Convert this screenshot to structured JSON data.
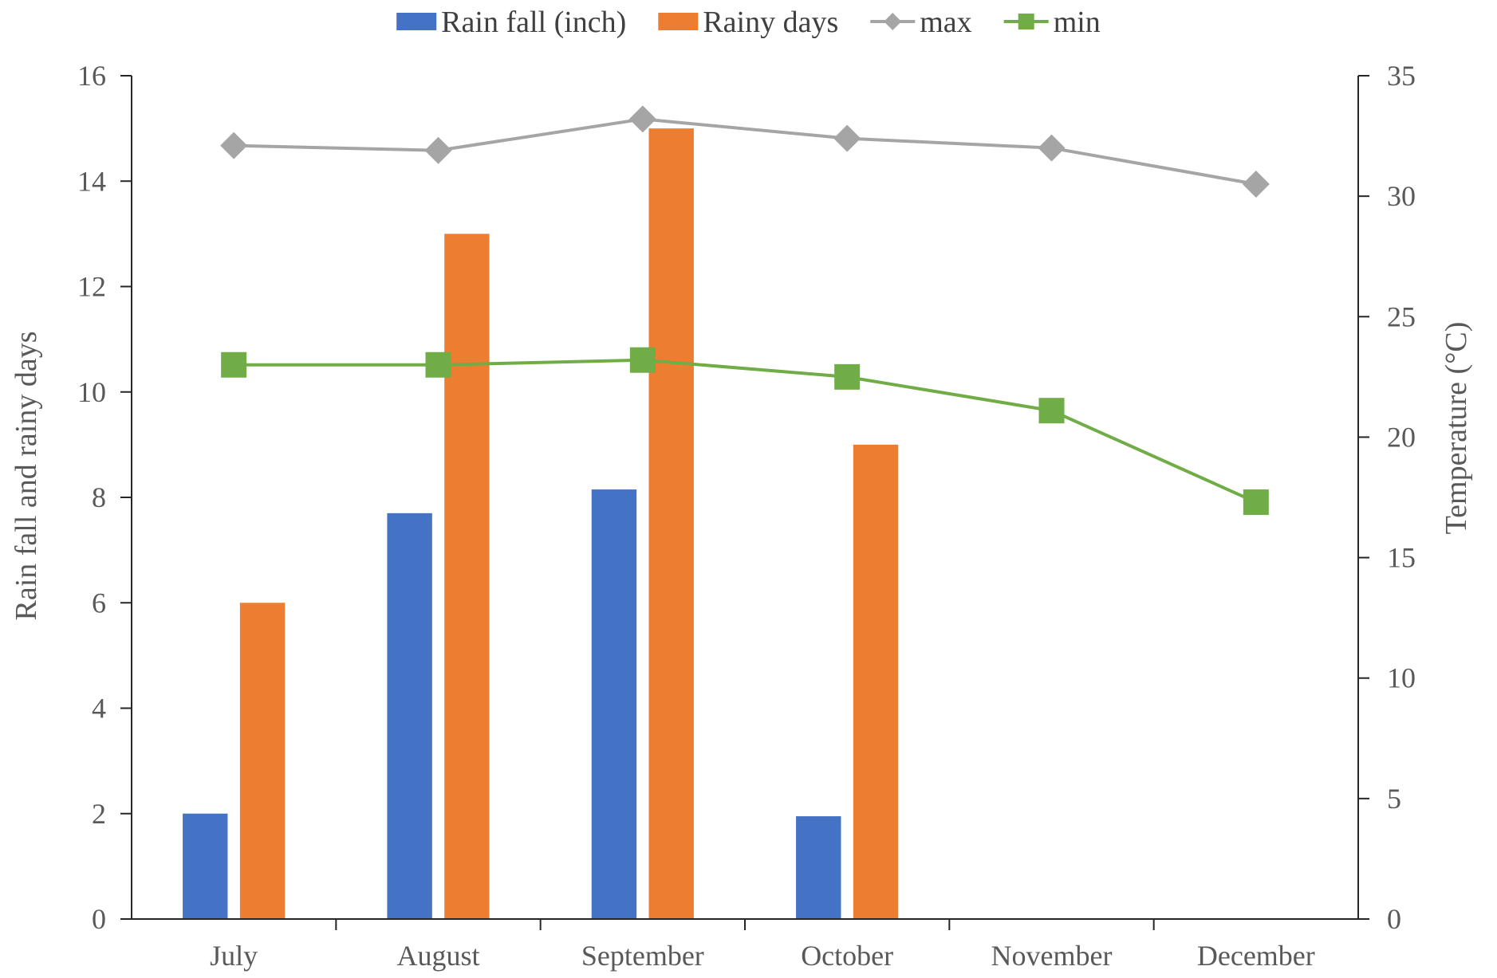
{
  "chart_data": {
    "type": "bar",
    "categories": [
      "July",
      "August",
      "September",
      "October",
      "November",
      "December"
    ],
    "series": [
      {
        "name": "Rain fall (inch)",
        "kind": "bar",
        "axis": "left",
        "color": "#4472C4",
        "values": [
          2.0,
          7.7,
          8.15,
          1.95,
          null,
          null
        ]
      },
      {
        "name": "Rainy days",
        "kind": "bar",
        "axis": "left",
        "color": "#ED7D31",
        "values": [
          6,
          13,
          15,
          9,
          null,
          null
        ]
      },
      {
        "name": "max",
        "kind": "line",
        "marker": "diamond",
        "axis": "right",
        "color": "#A5A5A5",
        "values": [
          32.1,
          31.9,
          33.2,
          32.4,
          32.0,
          30.5
        ]
      },
      {
        "name": "min",
        "kind": "line",
        "marker": "square",
        "axis": "right",
        "color": "#70AD47",
        "values": [
          23.0,
          23.0,
          23.2,
          22.5,
          21.1,
          17.3
        ]
      }
    ],
    "ylabel": "Rain fall  and rainy days",
    "y2label": "Temperature (°C)",
    "ylim": [
      0,
      16
    ],
    "y2lim": [
      0,
      35
    ],
    "yticks": [
      "0",
      "2",
      "4",
      "6",
      "8",
      "10",
      "12",
      "14",
      "16"
    ],
    "y2ticks": [
      "0",
      "5",
      "10",
      "15",
      "20",
      "25",
      "30",
      "35"
    ],
    "legend_position": "top",
    "grid": false
  }
}
